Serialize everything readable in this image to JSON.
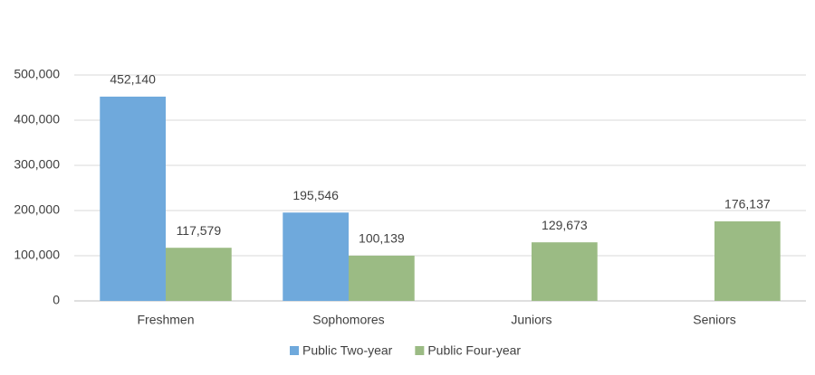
{
  "chart_data": {
    "type": "bar",
    "categories": [
      "Freshmen",
      "Sophomores",
      "Juniors",
      "Seniors"
    ],
    "series": [
      {
        "name": "Public Two-year",
        "color": "#6fa9dc",
        "values": [
          452140,
          195546,
          null,
          null
        ],
        "value_labels": [
          "452,140",
          "195,546",
          null,
          null
        ]
      },
      {
        "name": "Public Four-year",
        "color": "#9bbb84",
        "values": [
          117579,
          100139,
          129673,
          176137
        ],
        "value_labels": [
          "117,579",
          "100,139",
          "129,673",
          "176,137"
        ]
      }
    ],
    "ylim": [
      0,
      500000
    ],
    "yticks": [
      0,
      {
        "value": 100000,
        "label": "100,000"
      },
      {
        "value": 200000,
        "label": "200,000"
      },
      {
        "value": 300000,
        "label": "300,000"
      },
      {
        "value": 400000,
        "label": "400,000"
      },
      {
        "value": 500000,
        "label": "500,000"
      }
    ],
    "grid": true,
    "legend": "bottom"
  }
}
